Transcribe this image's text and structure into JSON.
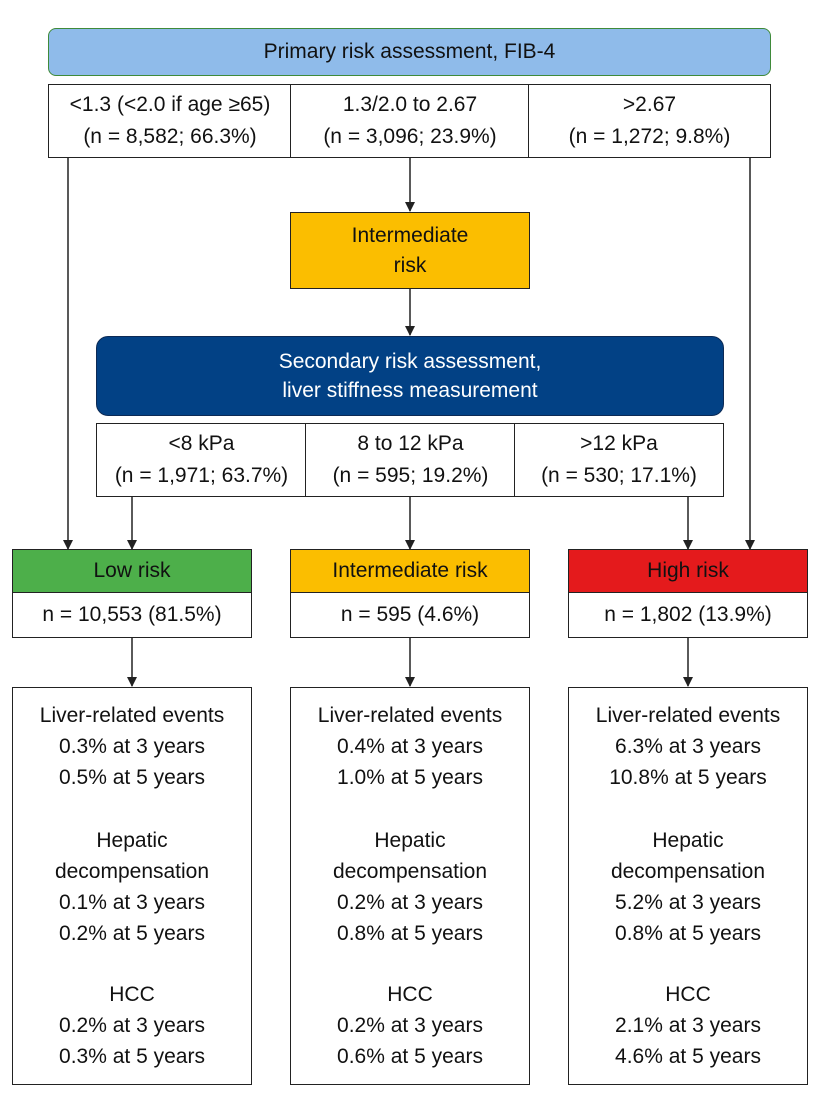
{
  "primary": {
    "title": "Primary risk assessment, FIB-4"
  },
  "fib4_bands": [
    {
      "range": "<1.3 (<2.0 if age ≥65)",
      "count": "(n = 8,582; 66.3%)"
    },
    {
      "range": "1.3/2.0 to 2.67",
      "count": "(n = 3,096; 23.9%)"
    },
    {
      "range": ">2.67",
      "count": "(n = 1,272; 9.8%)"
    }
  ],
  "intermediate_box": {
    "line1": "Intermediate",
    "line2": "risk"
  },
  "secondary": {
    "line1": "Secondary risk assessment,",
    "line2": "liver stiffness measurement"
  },
  "lsm_bands": [
    {
      "range": "<8 kPa",
      "count": "(n = 1,971; 63.7%)"
    },
    {
      "range": "8 to 12 kPa",
      "count": "(n = 595; 19.2%)"
    },
    {
      "range": ">12 kPa",
      "count": "(n = 530; 17.1%)"
    }
  ],
  "risk_groups": [
    {
      "label": "Low risk",
      "color": "#4daf4a",
      "n": "n = 10,553 (81.5%)",
      "events_title": "Liver-related events",
      "events": [
        "0.3% at 3 years",
        "0.5% at 5 years"
      ],
      "decomp_title_1": "Hepatic",
      "decomp_title_2": "decompensation",
      "decomp": [
        "0.1% at 3 years",
        "0.2% at 5 years"
      ],
      "hcc_title": "HCC",
      "hcc": [
        "0.2% at 3 years",
        "0.3% at 5 years"
      ]
    },
    {
      "label": "Intermediate risk",
      "color": "#fbbe00",
      "n": "n = 595 (4.6%)",
      "events_title": "Liver-related events",
      "events": [
        "0.4% at 3 years",
        "1.0% at 5 years"
      ],
      "decomp_title_1": "Hepatic",
      "decomp_title_2": "decompensation",
      "decomp": [
        "0.2% at 3 years",
        "0.8% at 5 years"
      ],
      "hcc_title": "HCC",
      "hcc": [
        "0.2% at 3 years",
        "0.6% at 5 years"
      ]
    },
    {
      "label": "High risk",
      "color": "#e41a1c",
      "n": "n = 1,802 (13.9%)",
      "events_title": "Liver-related events",
      "events": [
        "6.3% at 3 years",
        "10.8% at 5 years"
      ],
      "decomp_title_1": "Hepatic",
      "decomp_title_2": "decompensation",
      "decomp": [
        "5.2% at 3 years",
        "0.8% at 5 years"
      ],
      "hcc_title": "HCC",
      "hcc": [
        "2.1% at 3 years",
        "4.6% at 5 years"
      ]
    }
  ]
}
